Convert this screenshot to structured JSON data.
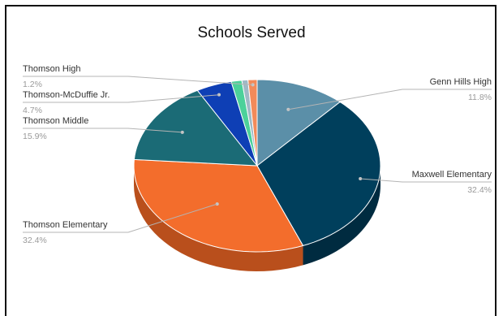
{
  "chart_data": {
    "type": "pie",
    "title": "Schools Served",
    "slices": [
      {
        "label": "Genn Hills High",
        "percent_label": "11.8%",
        "value": 11.8,
        "color": "#5b8fa8",
        "side_color": "#3f6c82"
      },
      {
        "label": "Maxwell Elementary",
        "percent_label": "32.4%",
        "value": 32.4,
        "color": "#003f5c",
        "side_color": "#002b40"
      },
      {
        "label": "Thomson Elementary",
        "percent_label": "32.4%",
        "value": 32.4,
        "color": "#f36d2c",
        "side_color": "#b94f1c"
      },
      {
        "label": "Thomson Middle",
        "percent_label": "15.9%",
        "value": 15.9,
        "color": "#1b6b76",
        "side_color": "#124c54"
      },
      {
        "label": "Thomson-McDuffie Jr.",
        "percent_label": "4.7%",
        "value": 4.7,
        "color": "#0e3fb5",
        "side_color": "#0a2d82"
      },
      {
        "label": "unlabeled-1",
        "percent_label": "",
        "value": 1.4,
        "color": "#4bd19a",
        "side_color": "#34a376"
      },
      {
        "label": "unlabeled-2",
        "percent_label": "",
        "value": 0.8,
        "color": "#9fb9c6",
        "side_color": "#7a95a3"
      },
      {
        "label": "Thomson High",
        "percent_label": "1.2%",
        "value": 1.2,
        "color": "#f28a5a",
        "side_color": "#c1643a"
      }
    ],
    "legend": "none",
    "style": "3d-pie-with-leader-labels"
  }
}
